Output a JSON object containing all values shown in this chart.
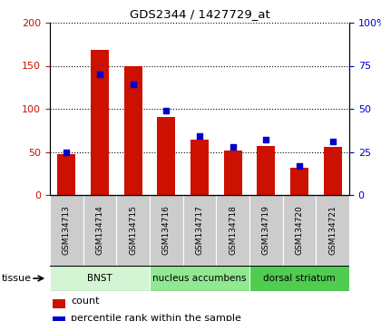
{
  "title": "GDS2344 / 1427729_at",
  "samples": [
    "GSM134713",
    "GSM134714",
    "GSM134715",
    "GSM134716",
    "GSM134717",
    "GSM134718",
    "GSM134719",
    "GSM134720",
    "GSM134721"
  ],
  "counts": [
    47,
    168,
    150,
    91,
    64,
    52,
    57,
    32,
    56
  ],
  "percentile_ranks": [
    25,
    70,
    64,
    49,
    34,
    28,
    32,
    17,
    31
  ],
  "tissues": [
    {
      "label": "BNST",
      "start": 0,
      "end": 3,
      "color": "#d4f5d4"
    },
    {
      "label": "nucleus accumbens",
      "start": 3,
      "end": 6,
      "color": "#90e890"
    },
    {
      "label": "dorsal striatum",
      "start": 6,
      "end": 9,
      "color": "#50cc50"
    }
  ],
  "ylim_left": [
    0,
    200
  ],
  "ylim_right": [
    0,
    100
  ],
  "yticks_left": [
    0,
    50,
    100,
    150,
    200
  ],
  "yticks_right": [
    0,
    25,
    50,
    75,
    100
  ],
  "ytick_labels_left": [
    "0",
    "50",
    "100",
    "150",
    "200"
  ],
  "ytick_labels_right": [
    "0",
    "25",
    "50",
    "75",
    "100%"
  ],
  "bar_color": "#cc1100",
  "dot_color": "#0000cc",
  "sample_bg": "#cccccc",
  "plot_bg": "#ffffff",
  "tissue_label": "tissue",
  "legend_count": "count",
  "legend_percentile": "percentile rank within the sample"
}
